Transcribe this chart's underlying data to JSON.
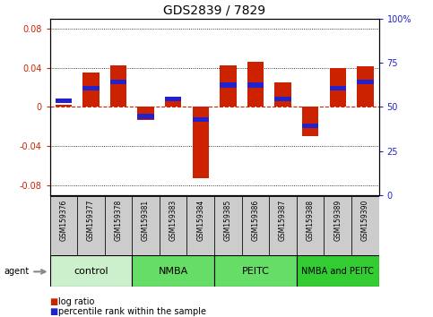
{
  "title": "GDS2839 / 7829",
  "samples": [
    "GSM159376",
    "GSM159377",
    "GSM159378",
    "GSM159381",
    "GSM159383",
    "GSM159384",
    "GSM159385",
    "GSM159386",
    "GSM159387",
    "GSM159388",
    "GSM159389",
    "GSM159390"
  ],
  "log_ratio": [
    0.002,
    0.035,
    0.043,
    -0.013,
    0.01,
    -0.073,
    0.043,
    0.046,
    0.025,
    -0.03,
    0.04,
    0.042
  ],
  "percentile": [
    0.54,
    0.62,
    0.66,
    0.44,
    0.55,
    0.42,
    0.64,
    0.64,
    0.55,
    0.38,
    0.62,
    0.66
  ],
  "groups": [
    {
      "label": "control",
      "start": 0,
      "end": 3,
      "color": "#ccf0cc"
    },
    {
      "label": "NMBA",
      "start": 3,
      "end": 6,
      "color": "#66dd66"
    },
    {
      "label": "PEITC",
      "start": 6,
      "end": 9,
      "color": "#66dd66"
    },
    {
      "label": "NMBA and PEITC",
      "start": 9,
      "end": 12,
      "color": "#33cc33"
    }
  ],
  "ylim": [
    -0.09,
    0.09
  ],
  "yticks_left": [
    -0.08,
    -0.04,
    0,
    0.04,
    0.08
  ],
  "yticks_right": [
    0,
    25,
    50,
    75,
    100
  ],
  "bar_width": 0.6,
  "log_color": "#cc2200",
  "pct_color": "#2222cc",
  "bg_color": "#ffffff",
  "plot_bg": "#ffffff",
  "zero_line_color": "#cc2200",
  "title_fontsize": 10,
  "tick_fontsize": 7,
  "group_label_fontsize": 8,
  "sample_fontsize": 5.5
}
